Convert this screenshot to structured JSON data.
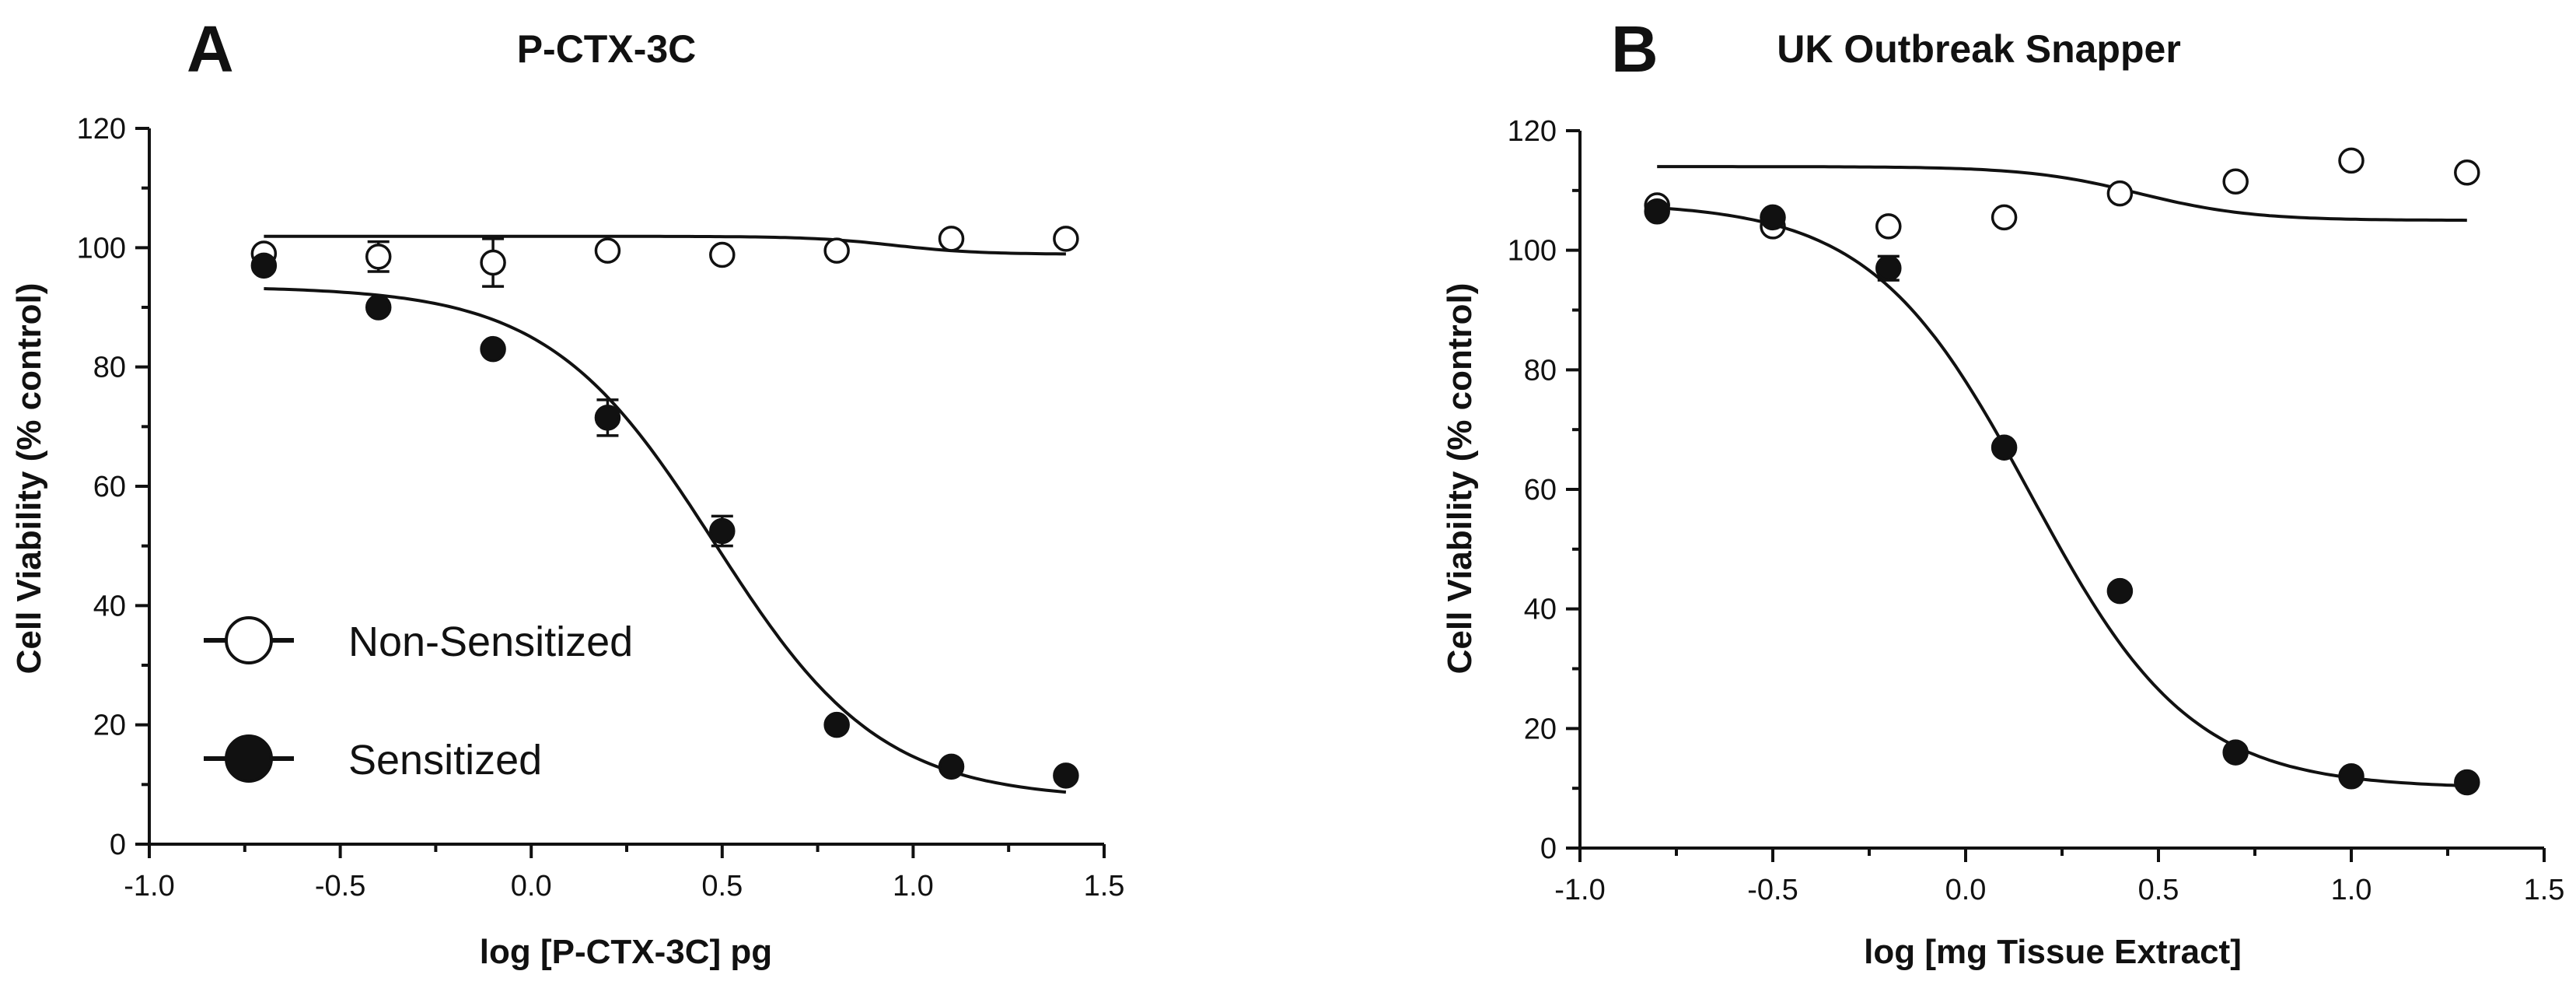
{
  "chart_data": [
    {
      "type": "scatter",
      "panel_letter": "A",
      "title": "P-CTX-3C",
      "xlabel": "log [P-CTX-3C] pg",
      "ylabel": "Cell Viability (% control)",
      "xlim": [
        -1.0,
        1.5
      ],
      "ylim": [
        0,
        120
      ],
      "xticks": [
        -1.0,
        -0.5,
        0.0,
        0.5,
        1.0,
        1.5
      ],
      "xtick_labels": [
        "-1.0",
        "-0.5",
        "0.0",
        "0.5",
        "1.0",
        "1.5"
      ],
      "yticks": [
        0,
        20,
        40,
        60,
        80,
        100,
        120
      ],
      "ytick_labels": [
        "0",
        "20",
        "40",
        "60",
        "80",
        "100",
        "120"
      ],
      "legend": {
        "placement": "bottom-left",
        "entries": [
          {
            "label": "Non-Sensitized",
            "marker": "open-circle"
          },
          {
            "label": "Sensitized",
            "marker": "filled-circle"
          }
        ]
      },
      "series": [
        {
          "name": "Non-Sensitized",
          "marker": "open-circle",
          "x": [
            -0.7,
            -0.4,
            -0.1,
            0.2,
            0.5,
            0.8,
            1.1,
            1.4
          ],
          "y": [
            99,
            98.5,
            97.5,
            99.5,
            98.8,
            99.5,
            101.5,
            101.5
          ],
          "err": [
            0,
            2.5,
            4,
            0,
            0,
            0,
            0,
            0
          ],
          "fit": {
            "bottom": 98.9,
            "top": 101.9,
            "log_ec50": 0.95,
            "hill": 4
          }
        },
        {
          "name": "Sensitized",
          "marker": "filled-circle",
          "x": [
            -0.7,
            -0.4,
            -0.1,
            0.2,
            0.5,
            0.8,
            1.1,
            1.4
          ],
          "y": [
            97,
            90,
            83,
            71.5,
            52.5,
            20,
            13,
            11.5
          ],
          "err": [
            0,
            0,
            0,
            3,
            2.5,
            0,
            0,
            0
          ],
          "fit": {
            "top": 93.5,
            "bottom": 7.5,
            "log_ec50": 0.48,
            "hill": 2.0
          }
        }
      ]
    },
    {
      "type": "scatter",
      "panel_letter": "B",
      "title": "UK Outbreak Snapper",
      "xlabel": "log [mg Tissue Extract]",
      "ylabel": "Cell Viability (% control)",
      "xlim": [
        -1.0,
        1.5
      ],
      "ylim": [
        0,
        120
      ],
      "xticks": [
        -1.0,
        -0.5,
        0.0,
        0.5,
        1.0,
        1.5
      ],
      "xtick_labels": [
        "-1.0",
        "-0.5",
        "0.0",
        "0.5",
        "1.0",
        "1.5"
      ],
      "yticks": [
        0,
        20,
        40,
        60,
        80,
        100,
        120
      ],
      "ytick_labels": [
        "0",
        "20",
        "40",
        "60",
        "80",
        "100",
        "120"
      ],
      "series": [
        {
          "name": "Non-Sensitized",
          "marker": "open-circle",
          "x": [
            -0.8,
            -0.5,
            -0.2,
            0.1,
            0.4,
            0.7,
            1.0,
            1.3
          ],
          "y": [
            107.5,
            104,
            104,
            105.5,
            109.5,
            111.5,
            115,
            113
          ],
          "err": [
            0,
            0,
            0,
            0,
            0,
            0,
            0,
            0
          ],
          "fit": {
            "bottom": 105,
            "top": 114,
            "log_ec50": 0.45,
            "hill": 3
          }
        },
        {
          "name": "Sensitized",
          "marker": "filled-circle",
          "x": [
            -0.8,
            -0.5,
            -0.2,
            0.1,
            0.4,
            0.7,
            1.0,
            1.3
          ],
          "y": [
            106.5,
            105.5,
            97,
            67,
            43,
            16,
            12,
            11
          ],
          "err": [
            0,
            0,
            2,
            0,
            0,
            0,
            0,
            0
          ],
          "fit": {
            "top": 108,
            "bottom": 10,
            "log_ec50": 0.17,
            "hill": 2.1
          }
        }
      ]
    }
  ]
}
